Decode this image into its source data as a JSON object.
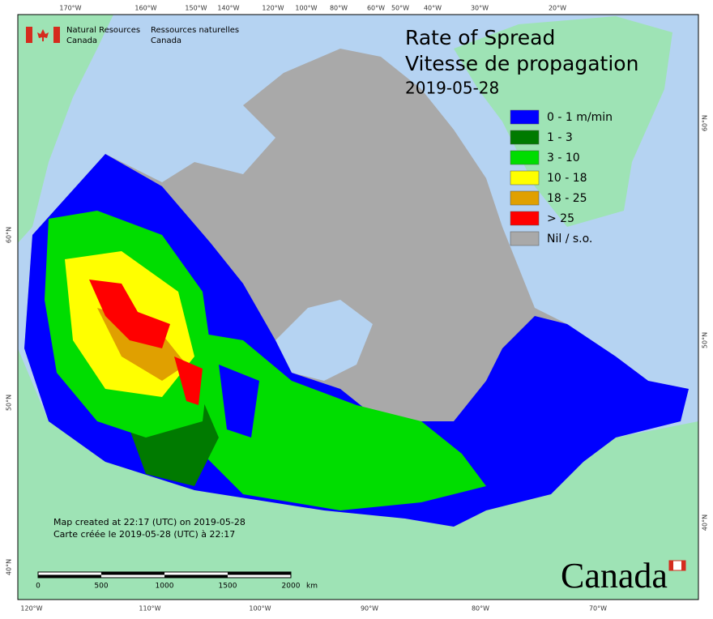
{
  "agency": {
    "en": [
      "Natural Resources",
      "Canada"
    ],
    "fr": [
      "Ressources naturelles",
      "Canada"
    ]
  },
  "title": {
    "line1": "Rate of Spread",
    "line2": "Vitesse de propagation",
    "date": "2019-05-28"
  },
  "legend": [
    {
      "label": "0 - 1 m/min",
      "color": "#0000ff"
    },
    {
      "label": "1 - 3",
      "color": "#007a00"
    },
    {
      "label": "3 - 10",
      "color": "#00dd00"
    },
    {
      "label": "10 - 18",
      "color": "#ffff00"
    },
    {
      "label": "18 - 25",
      "color": "#e0a000"
    },
    {
      "label": "> 25",
      "color": "#ff0000"
    },
    {
      "label": "Nil / s.o.",
      "color": "#a9a9a9"
    }
  ],
  "graticule": {
    "top": [
      "170°W",
      "160°W",
      "150°W",
      "140°W",
      "120°W",
      "100°W",
      "80°W",
      "60°W",
      "50°W",
      "40°W",
      "30°W",
      "20°W"
    ],
    "bottom": [
      "120°W",
      "110°W",
      "100°W",
      "90°W",
      "80°W",
      "70°W"
    ],
    "left": [
      "60°N",
      "50°N",
      "40°N"
    ],
    "right": [
      "60°N",
      "50°N",
      "40°N"
    ]
  },
  "credits": [
    "Map created at 22:17 (UTC) on 2019-05-28",
    "Carte créée le 2019-05-28 (UTC) à 22:17"
  ],
  "scale": {
    "labels": [
      "0",
      "500",
      "1000",
      "1500",
      "2000"
    ],
    "unit": "km"
  },
  "wordmark": "Canada"
}
